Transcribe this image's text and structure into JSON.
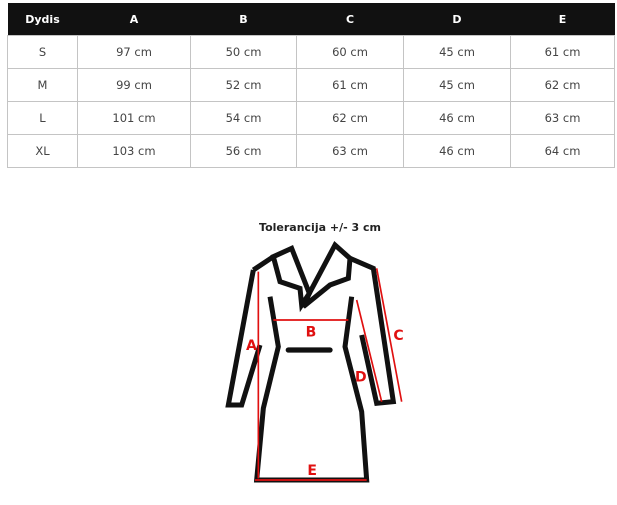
{
  "table": {
    "headers": [
      "Dydis",
      "A",
      "B",
      "C",
      "D",
      "E"
    ],
    "rows": [
      [
        "S",
        "97 cm",
        "50 cm",
        "60 cm",
        "45 cm",
        "61 cm"
      ],
      [
        "M",
        "99 cm",
        "52 cm",
        "61 cm",
        "45 cm",
        "62 cm"
      ],
      [
        "L",
        "101 cm",
        "54 cm",
        "62 cm",
        "46 cm",
        "63 cm"
      ],
      [
        "XL",
        "103 cm",
        "56 cm",
        "63 cm",
        "46 cm",
        "64 cm"
      ]
    ]
  },
  "diagram": {
    "title": "Tolerancija +/- 3 cm",
    "labels": {
      "a": "A",
      "b": "B",
      "c": "C",
      "d": "D",
      "e": "E"
    },
    "measure_color": "#e01010",
    "outline_color": "#111111"
  }
}
